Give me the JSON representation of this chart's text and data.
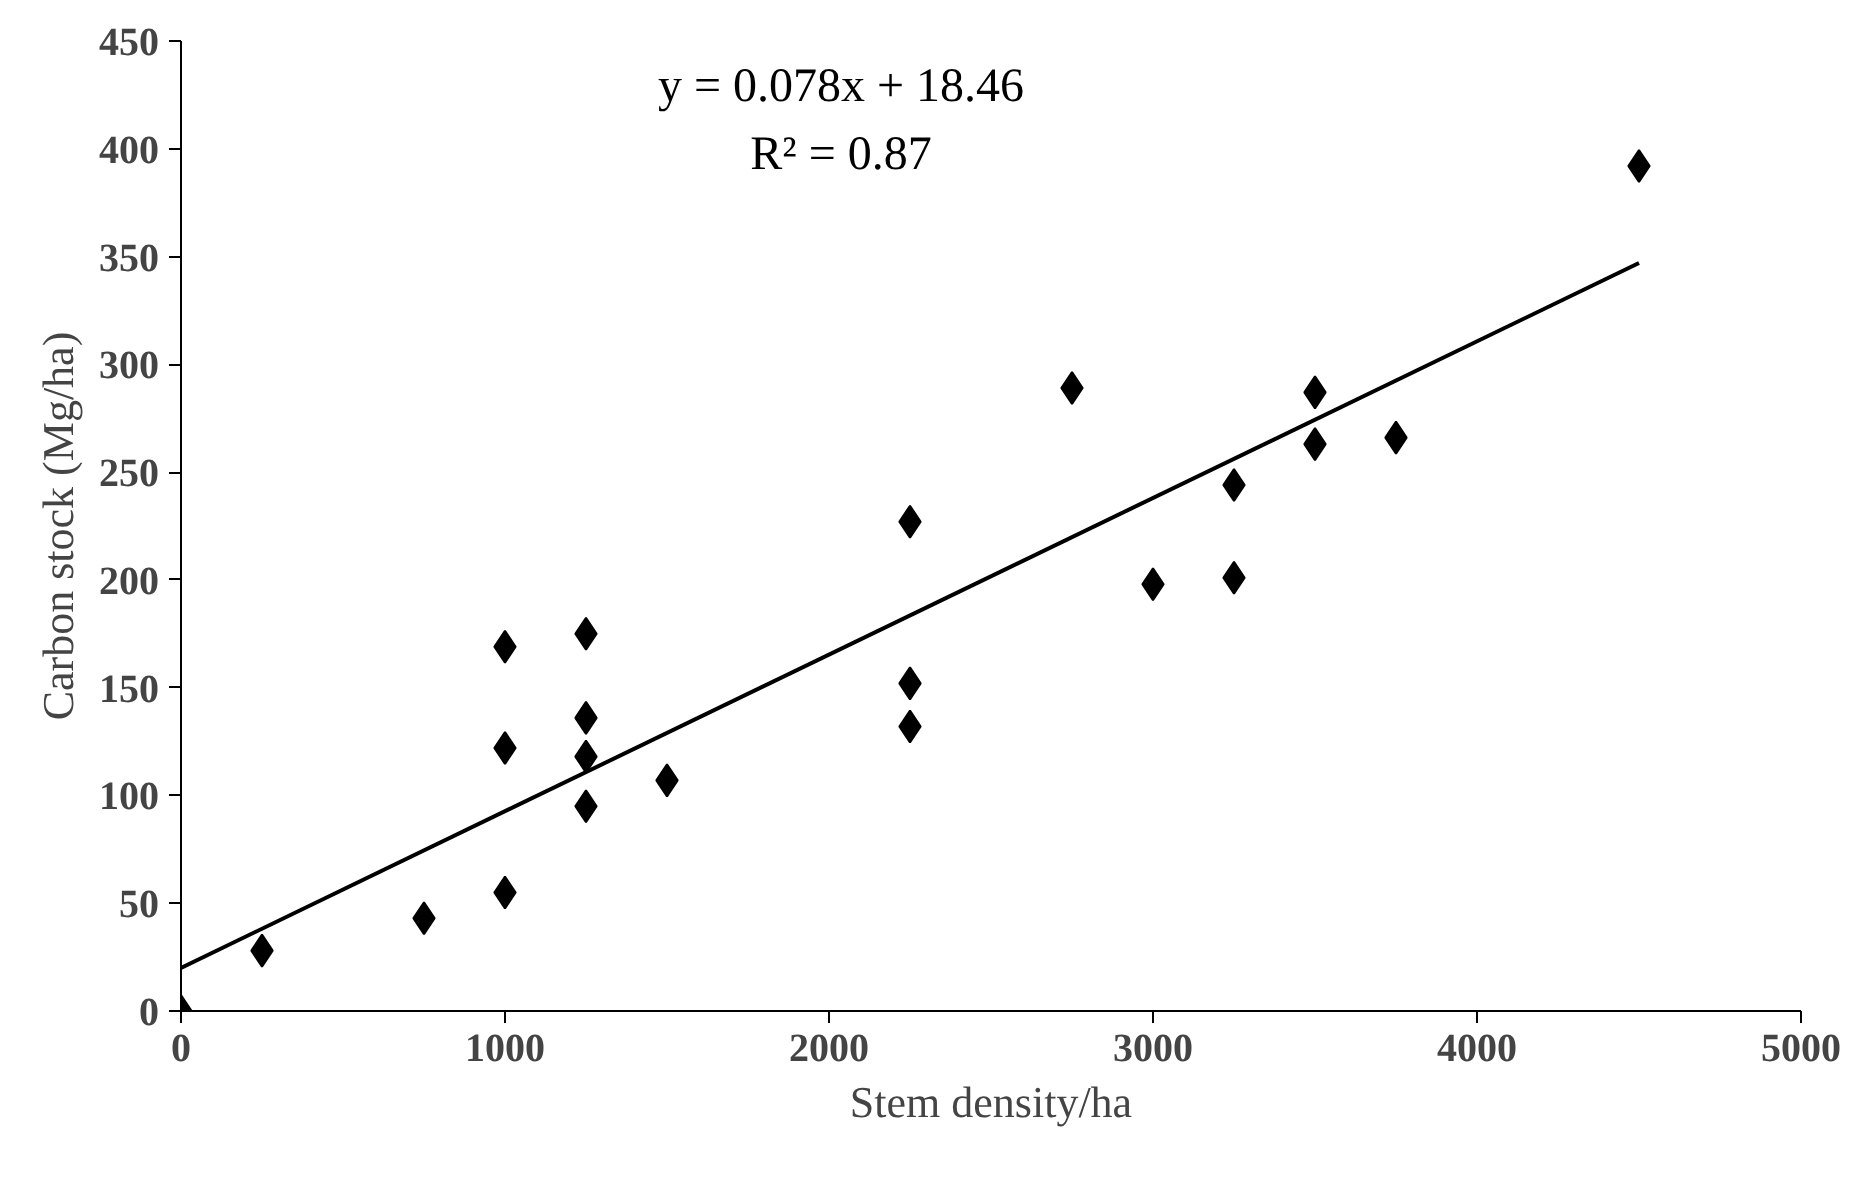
{
  "chart_data": {
    "type": "scatter",
    "xlabel": "Stem density/ha",
    "ylabel": "Carbon stock (Mg/ha)",
    "annotations": [
      "y = 0.078x + 18.46",
      "R² = 0.87"
    ],
    "xlim": [
      0,
      5000
    ],
    "ylim": [
      0,
      450
    ],
    "xticks": [
      0,
      1000,
      2000,
      3000,
      4000,
      5000
    ],
    "yticks": [
      0,
      50,
      100,
      150,
      200,
      250,
      300,
      350,
      400,
      450
    ],
    "grid": false,
    "marker": "diamond",
    "series": [
      {
        "color": "#000000",
        "x": [
          0,
          250,
          750,
          1000,
          1000,
          1000,
          1250,
          1250,
          1250,
          1250,
          1500,
          2250,
          2250,
          2250,
          2750,
          3000,
          3250,
          3250,
          3500,
          3500,
          3750,
          4500
        ],
        "values": [
          0,
          28,
          43,
          55,
          122,
          169,
          175,
          136,
          118,
          95,
          107,
          227,
          152,
          132,
          289,
          198,
          244,
          201,
          287,
          263,
          266,
          392
        ]
      },
      {
        "type": "line",
        "color": "#000000",
        "x": [
          0,
          4500
        ],
        "values": [
          20,
          347
        ],
        "line_style": "solid",
        "marker": "none"
      }
    ]
  }
}
